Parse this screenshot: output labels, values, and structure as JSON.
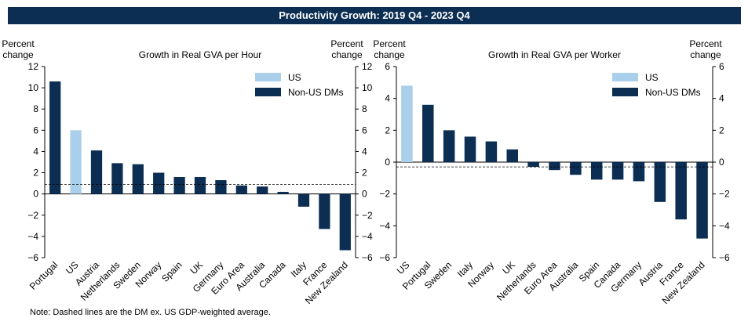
{
  "header": {
    "title": "Productivity Growth: 2019 Q4 - 2023 Q4"
  },
  "note": "Note: Dashed lines are the DM ex. US GDP-weighted average.",
  "colors": {
    "us": "#a9cfeb",
    "non_us": "#0b2e52",
    "banner": "#0b2e52"
  },
  "chart_data": [
    {
      "type": "bar",
      "title": "Growth in Real GVA per Hour",
      "ylabel_left": [
        "Percent",
        "change"
      ],
      "ylabel_right": [
        "Percent",
        "change"
      ],
      "ylim": [
        -6,
        12
      ],
      "yticks": [
        -6,
        -4,
        -2,
        0,
        2,
        4,
        6,
        8,
        10,
        12
      ],
      "categories": [
        "Portugal",
        "US",
        "Austria",
        "Netherlands",
        "Sweden",
        "Norway",
        "Spain",
        "UK",
        "Germany",
        "Euro Area",
        "Australia",
        "Canada",
        "Italy",
        "France",
        "New Zealand"
      ],
      "values": [
        10.6,
        6.0,
        4.1,
        2.9,
        2.8,
        2.0,
        1.6,
        1.6,
        1.3,
        0.8,
        0.7,
        0.2,
        -1.2,
        -3.3,
        -5.3
      ],
      "highlight": "US",
      "average": 0.9,
      "legend": [
        {
          "label": "US",
          "color": "#a9cfeb"
        },
        {
          "label": "Non-US DMs",
          "color": "#0b2e52"
        }
      ]
    },
    {
      "type": "bar",
      "title": "Growth in Real GVA per Worker",
      "ylabel_left": [
        "Percent",
        "change"
      ],
      "ylabel_right": [
        "Percent",
        "change"
      ],
      "ylim": [
        -6,
        6
      ],
      "yticks": [
        -6,
        -4,
        -2,
        0,
        2,
        4,
        6
      ],
      "categories": [
        "US",
        "Portugal",
        "Sweden",
        "Italy",
        "Norway",
        "UK",
        "Netherlands",
        "Euro Area",
        "Australia",
        "Spain",
        "Canada",
        "Germany",
        "Austria",
        "France",
        "New Zealand"
      ],
      "values": [
        4.8,
        3.6,
        2.0,
        1.6,
        1.3,
        0.8,
        -0.3,
        -0.5,
        -0.8,
        -1.1,
        -1.1,
        -1.2,
        -2.5,
        -3.6,
        -4.8
      ],
      "highlight": "US",
      "average": -0.3,
      "legend": [
        {
          "label": "US",
          "color": "#a9cfeb"
        },
        {
          "label": "Non-US DMs",
          "color": "#0b2e52"
        }
      ]
    }
  ]
}
